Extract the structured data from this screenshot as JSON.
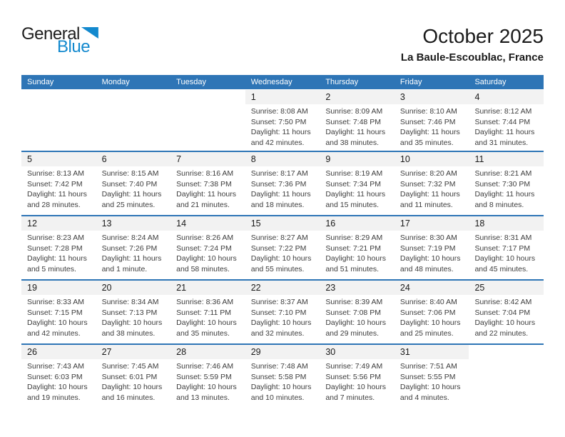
{
  "logo": {
    "text_general": "General",
    "text_blue": "Blue"
  },
  "header": {
    "month_title": "October 2025",
    "location": "La Baule-Escoublac, France"
  },
  "colors": {
    "header_bar": "#2E75B6",
    "row_divider": "#2E75B6",
    "day_band": "#F2F2F2",
    "logo_blue": "#1389CE",
    "header_text": "#FFFFFF"
  },
  "calendar": {
    "weekday_headers": [
      "Sunday",
      "Monday",
      "Tuesday",
      "Wednesday",
      "Thursday",
      "Friday",
      "Saturday"
    ],
    "weeks": [
      [
        null,
        null,
        null,
        {
          "day": "1",
          "sunrise": "Sunrise: 8:08 AM",
          "sunset": "Sunset: 7:50 PM",
          "daylight": "Daylight: 11 hours and 42 minutes."
        },
        {
          "day": "2",
          "sunrise": "Sunrise: 8:09 AM",
          "sunset": "Sunset: 7:48 PM",
          "daylight": "Daylight: 11 hours and 38 minutes."
        },
        {
          "day": "3",
          "sunrise": "Sunrise: 8:10 AM",
          "sunset": "Sunset: 7:46 PM",
          "daylight": "Daylight: 11 hours and 35 minutes."
        },
        {
          "day": "4",
          "sunrise": "Sunrise: 8:12 AM",
          "sunset": "Sunset: 7:44 PM",
          "daylight": "Daylight: 11 hours and 31 minutes."
        }
      ],
      [
        {
          "day": "5",
          "sunrise": "Sunrise: 8:13 AM",
          "sunset": "Sunset: 7:42 PM",
          "daylight": "Daylight: 11 hours and 28 minutes."
        },
        {
          "day": "6",
          "sunrise": "Sunrise: 8:15 AM",
          "sunset": "Sunset: 7:40 PM",
          "daylight": "Daylight: 11 hours and 25 minutes."
        },
        {
          "day": "7",
          "sunrise": "Sunrise: 8:16 AM",
          "sunset": "Sunset: 7:38 PM",
          "daylight": "Daylight: 11 hours and 21 minutes."
        },
        {
          "day": "8",
          "sunrise": "Sunrise: 8:17 AM",
          "sunset": "Sunset: 7:36 PM",
          "daylight": "Daylight: 11 hours and 18 minutes."
        },
        {
          "day": "9",
          "sunrise": "Sunrise: 8:19 AM",
          "sunset": "Sunset: 7:34 PM",
          "daylight": "Daylight: 11 hours and 15 minutes."
        },
        {
          "day": "10",
          "sunrise": "Sunrise: 8:20 AM",
          "sunset": "Sunset: 7:32 PM",
          "daylight": "Daylight: 11 hours and 11 minutes."
        },
        {
          "day": "11",
          "sunrise": "Sunrise: 8:21 AM",
          "sunset": "Sunset: 7:30 PM",
          "daylight": "Daylight: 11 hours and 8 minutes."
        }
      ],
      [
        {
          "day": "12",
          "sunrise": "Sunrise: 8:23 AM",
          "sunset": "Sunset: 7:28 PM",
          "daylight": "Daylight: 11 hours and 5 minutes."
        },
        {
          "day": "13",
          "sunrise": "Sunrise: 8:24 AM",
          "sunset": "Sunset: 7:26 PM",
          "daylight": "Daylight: 11 hours and 1 minute."
        },
        {
          "day": "14",
          "sunrise": "Sunrise: 8:26 AM",
          "sunset": "Sunset: 7:24 PM",
          "daylight": "Daylight: 10 hours and 58 minutes."
        },
        {
          "day": "15",
          "sunrise": "Sunrise: 8:27 AM",
          "sunset": "Sunset: 7:22 PM",
          "daylight": "Daylight: 10 hours and 55 minutes."
        },
        {
          "day": "16",
          "sunrise": "Sunrise: 8:29 AM",
          "sunset": "Sunset: 7:21 PM",
          "daylight": "Daylight: 10 hours and 51 minutes."
        },
        {
          "day": "17",
          "sunrise": "Sunrise: 8:30 AM",
          "sunset": "Sunset: 7:19 PM",
          "daylight": "Daylight: 10 hours and 48 minutes."
        },
        {
          "day": "18",
          "sunrise": "Sunrise: 8:31 AM",
          "sunset": "Sunset: 7:17 PM",
          "daylight": "Daylight: 10 hours and 45 minutes."
        }
      ],
      [
        {
          "day": "19",
          "sunrise": "Sunrise: 8:33 AM",
          "sunset": "Sunset: 7:15 PM",
          "daylight": "Daylight: 10 hours and 42 minutes."
        },
        {
          "day": "20",
          "sunrise": "Sunrise: 8:34 AM",
          "sunset": "Sunset: 7:13 PM",
          "daylight": "Daylight: 10 hours and 38 minutes."
        },
        {
          "day": "21",
          "sunrise": "Sunrise: 8:36 AM",
          "sunset": "Sunset: 7:11 PM",
          "daylight": "Daylight: 10 hours and 35 minutes."
        },
        {
          "day": "22",
          "sunrise": "Sunrise: 8:37 AM",
          "sunset": "Sunset: 7:10 PM",
          "daylight": "Daylight: 10 hours and 32 minutes."
        },
        {
          "day": "23",
          "sunrise": "Sunrise: 8:39 AM",
          "sunset": "Sunset: 7:08 PM",
          "daylight": "Daylight: 10 hours and 29 minutes."
        },
        {
          "day": "24",
          "sunrise": "Sunrise: 8:40 AM",
          "sunset": "Sunset: 7:06 PM",
          "daylight": "Daylight: 10 hours and 25 minutes."
        },
        {
          "day": "25",
          "sunrise": "Sunrise: 8:42 AM",
          "sunset": "Sunset: 7:04 PM",
          "daylight": "Daylight: 10 hours and 22 minutes."
        }
      ],
      [
        {
          "day": "26",
          "sunrise": "Sunrise: 7:43 AM",
          "sunset": "Sunset: 6:03 PM",
          "daylight": "Daylight: 10 hours and 19 minutes."
        },
        {
          "day": "27",
          "sunrise": "Sunrise: 7:45 AM",
          "sunset": "Sunset: 6:01 PM",
          "daylight": "Daylight: 10 hours and 16 minutes."
        },
        {
          "day": "28",
          "sunrise": "Sunrise: 7:46 AM",
          "sunset": "Sunset: 5:59 PM",
          "daylight": "Daylight: 10 hours and 13 minutes."
        },
        {
          "day": "29",
          "sunrise": "Sunrise: 7:48 AM",
          "sunset": "Sunset: 5:58 PM",
          "daylight": "Daylight: 10 hours and 10 minutes."
        },
        {
          "day": "30",
          "sunrise": "Sunrise: 7:49 AM",
          "sunset": "Sunset: 5:56 PM",
          "daylight": "Daylight: 10 hours and 7 minutes."
        },
        {
          "day": "31",
          "sunrise": "Sunrise: 7:51 AM",
          "sunset": "Sunset: 5:55 PM",
          "daylight": "Daylight: 10 hours and 4 minutes."
        },
        null
      ]
    ]
  }
}
